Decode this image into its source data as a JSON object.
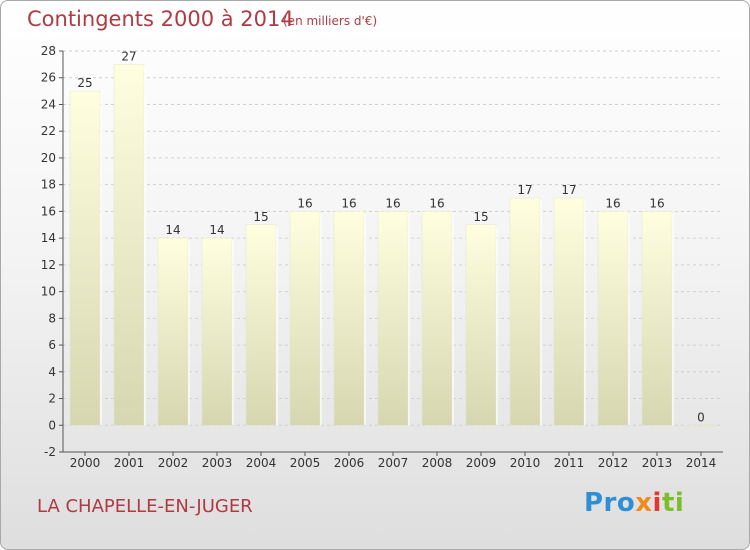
{
  "header": {
    "title": "Contingents 2000 à 2014",
    "unit": "(en milliers d'€)"
  },
  "footer": {
    "commune": "LA CHAPELLE-EN-JUGER",
    "logo_parts": [
      "Pro",
      "x",
      "i",
      "ti"
    ]
  },
  "colors": {
    "title": "#b03a42",
    "bar_top": "#ffffe0",
    "bar_bottom": "#d6d6b0",
    "grid": "#d0d0d0",
    "axis": "#555555",
    "label": "#333333"
  },
  "chart_data": {
    "type": "bar",
    "categories": [
      "2000",
      "2001",
      "2002",
      "2003",
      "2004",
      "2005",
      "2006",
      "2007",
      "2008",
      "2009",
      "2010",
      "2011",
      "2012",
      "2013",
      "2014"
    ],
    "values": [
      25,
      27,
      14,
      14,
      15,
      16,
      16,
      16,
      16,
      15,
      17,
      17,
      16,
      16,
      0
    ],
    "ylim": [
      -2,
      28
    ],
    "yticks": [
      -2,
      0,
      2,
      4,
      6,
      8,
      10,
      12,
      14,
      16,
      18,
      20,
      22,
      24,
      26,
      28
    ],
    "grid": true,
    "data_labels": true
  }
}
